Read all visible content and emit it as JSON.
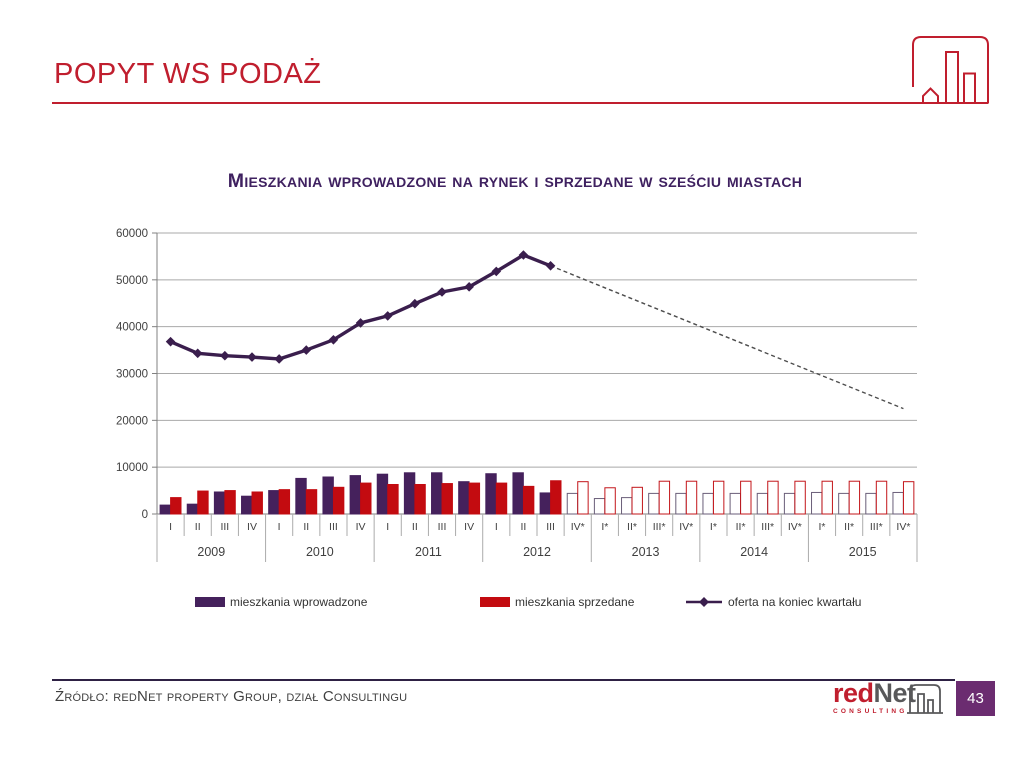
{
  "slide": {
    "title": "POPYT WS PODAŻ",
    "page_number": "43"
  },
  "colors": {
    "title_red": "#C01E2E",
    "chart_title_purple": "#3F2160",
    "bar_purple": "#45215C",
    "bar_red": "#C30B10",
    "forecast_purple_outline": "#6A5E79",
    "forecast_red_outline": "#C3151A",
    "line_purple": "#3A1E4D",
    "dashed_gray": "#4D4D4D",
    "grid_gray": "#A9A9A9",
    "axis_gray": "#808080",
    "table_border_gray": "#ABABAB",
    "axis_text_gray": "#404040",
    "footer_rule_purple": "#2E2144",
    "footer_text_gray": "#3F3F3F",
    "brand_gray": "#58585A",
    "page_box_purple": "#6B2C70",
    "legend_text": "#333333"
  },
  "chart_data": {
    "type": "bar+line combo",
    "title": "Mieszkania wprowadzone na rynek i sprzedane w sześciu miastach",
    "ylim": [
      0,
      60000
    ],
    "ytick_step": 10000,
    "yticks": [
      "0",
      "10000",
      "20000",
      "30000",
      "40000",
      "50000",
      "60000"
    ],
    "year_groups": [
      {
        "year": "2009",
        "quarters": [
          "I",
          "II",
          "III",
          "IV"
        ]
      },
      {
        "year": "2010",
        "quarters": [
          "I",
          "II",
          "III",
          "IV"
        ]
      },
      {
        "year": "2011",
        "quarters": [
          "I",
          "II",
          "III",
          "IV"
        ]
      },
      {
        "year": "2012",
        "quarters": [
          "I",
          "II",
          "III",
          "IV*"
        ]
      },
      {
        "year": "2013",
        "quarters": [
          "I*",
          "II*",
          "III*",
          "IV*"
        ]
      },
      {
        "year": "2014",
        "quarters": [
          "I*",
          "II*",
          "III*",
          "IV*"
        ]
      },
      {
        "year": "2015",
        "quarters": [
          "I*",
          "II*",
          "III*",
          "IV*"
        ]
      }
    ],
    "solid_count": 15,
    "series": [
      {
        "name": "mieszkania wprowadzone",
        "type": "bar",
        "values": [
          1900,
          2100,
          4700,
          3800,
          5000,
          7600,
          7900,
          8200,
          8500,
          8800,
          8800,
          6900,
          8600,
          8800,
          4500,
          4400,
          3300,
          3500,
          4400,
          4400,
          4400,
          4400,
          4400,
          4400,
          4600,
          4400,
          4400,
          4600
        ]
      },
      {
        "name": "mieszkania sprzedane",
        "type": "bar",
        "values": [
          3500,
          4900,
          5000,
          4700,
          5200,
          5200,
          5700,
          6600,
          6300,
          6300,
          6500,
          6600,
          6600,
          5900,
          7100,
          6900,
          5600,
          5700,
          7000,
          7000,
          7000,
          7000,
          7000,
          7000,
          7000,
          7000,
          7000,
          6900
        ]
      },
      {
        "name": "oferta na koniec kwartału",
        "type": "line",
        "solid_values": [
          36800,
          34300,
          33800,
          33500,
          33100,
          35000,
          37200,
          40800,
          42300,
          44900,
          47400,
          48500,
          51800,
          55300,
          53000
        ],
        "forecast_end_value": 22500
      }
    ]
  },
  "footer": {
    "source": "Źródło: redNet property Group, dział Consultingu",
    "brand_red": "red",
    "brand_net": "Net",
    "brand_sub": "CONSULTING"
  }
}
